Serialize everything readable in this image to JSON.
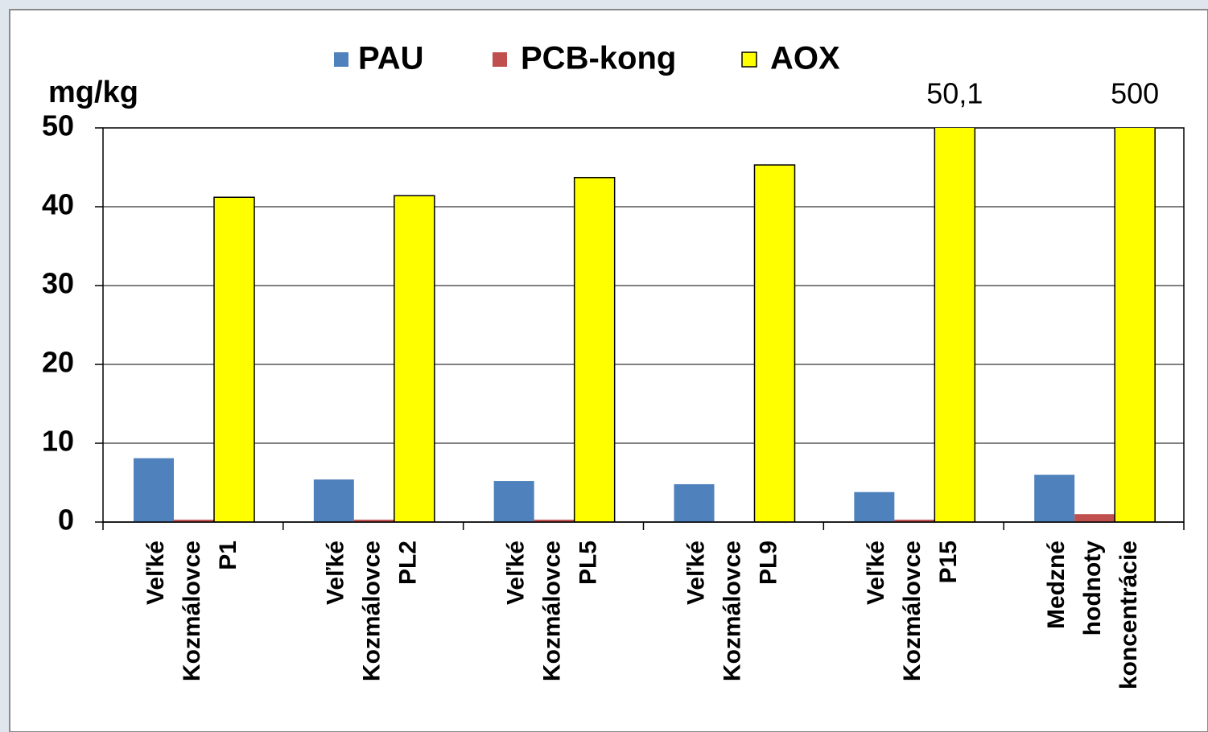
{
  "chart_data": {
    "type": "bar",
    "y_label": "mg/kg",
    "categories": [
      [
        "Veľké",
        "Kozmálovce",
        "P1"
      ],
      [
        "Veľké",
        "Kozmálovce",
        "PL2"
      ],
      [
        "Veľké",
        "Kozmálovce",
        "PL5"
      ],
      [
        "Veľké",
        "Kozmálovce",
        "PL9"
      ],
      [
        "Veľké",
        "Kozmálovce",
        "P15"
      ],
      [
        "Medzné",
        "hodnoty",
        "koncentrácie"
      ]
    ],
    "series": [
      {
        "name": "PAU",
        "color": "#4f81bd",
        "values": [
          8.1,
          5.4,
          5.2,
          4.8,
          3.8,
          6.0
        ]
      },
      {
        "name": "PCB-kong",
        "color": "#c0504d",
        "values": [
          0.3,
          0.3,
          0.3,
          0,
          0.3,
          1.0
        ]
      },
      {
        "name": "AOX",
        "color": "#ffff00",
        "values": [
          41.2,
          41.4,
          43.7,
          45.3,
          50.1,
          500
        ],
        "value_labels": [
          null,
          null,
          null,
          null,
          "50,1",
          "500"
        ]
      }
    ],
    "ylim": [
      0,
      50
    ],
    "yticks": [
      0,
      10,
      20,
      30,
      40,
      50
    ],
    "grid": true
  }
}
